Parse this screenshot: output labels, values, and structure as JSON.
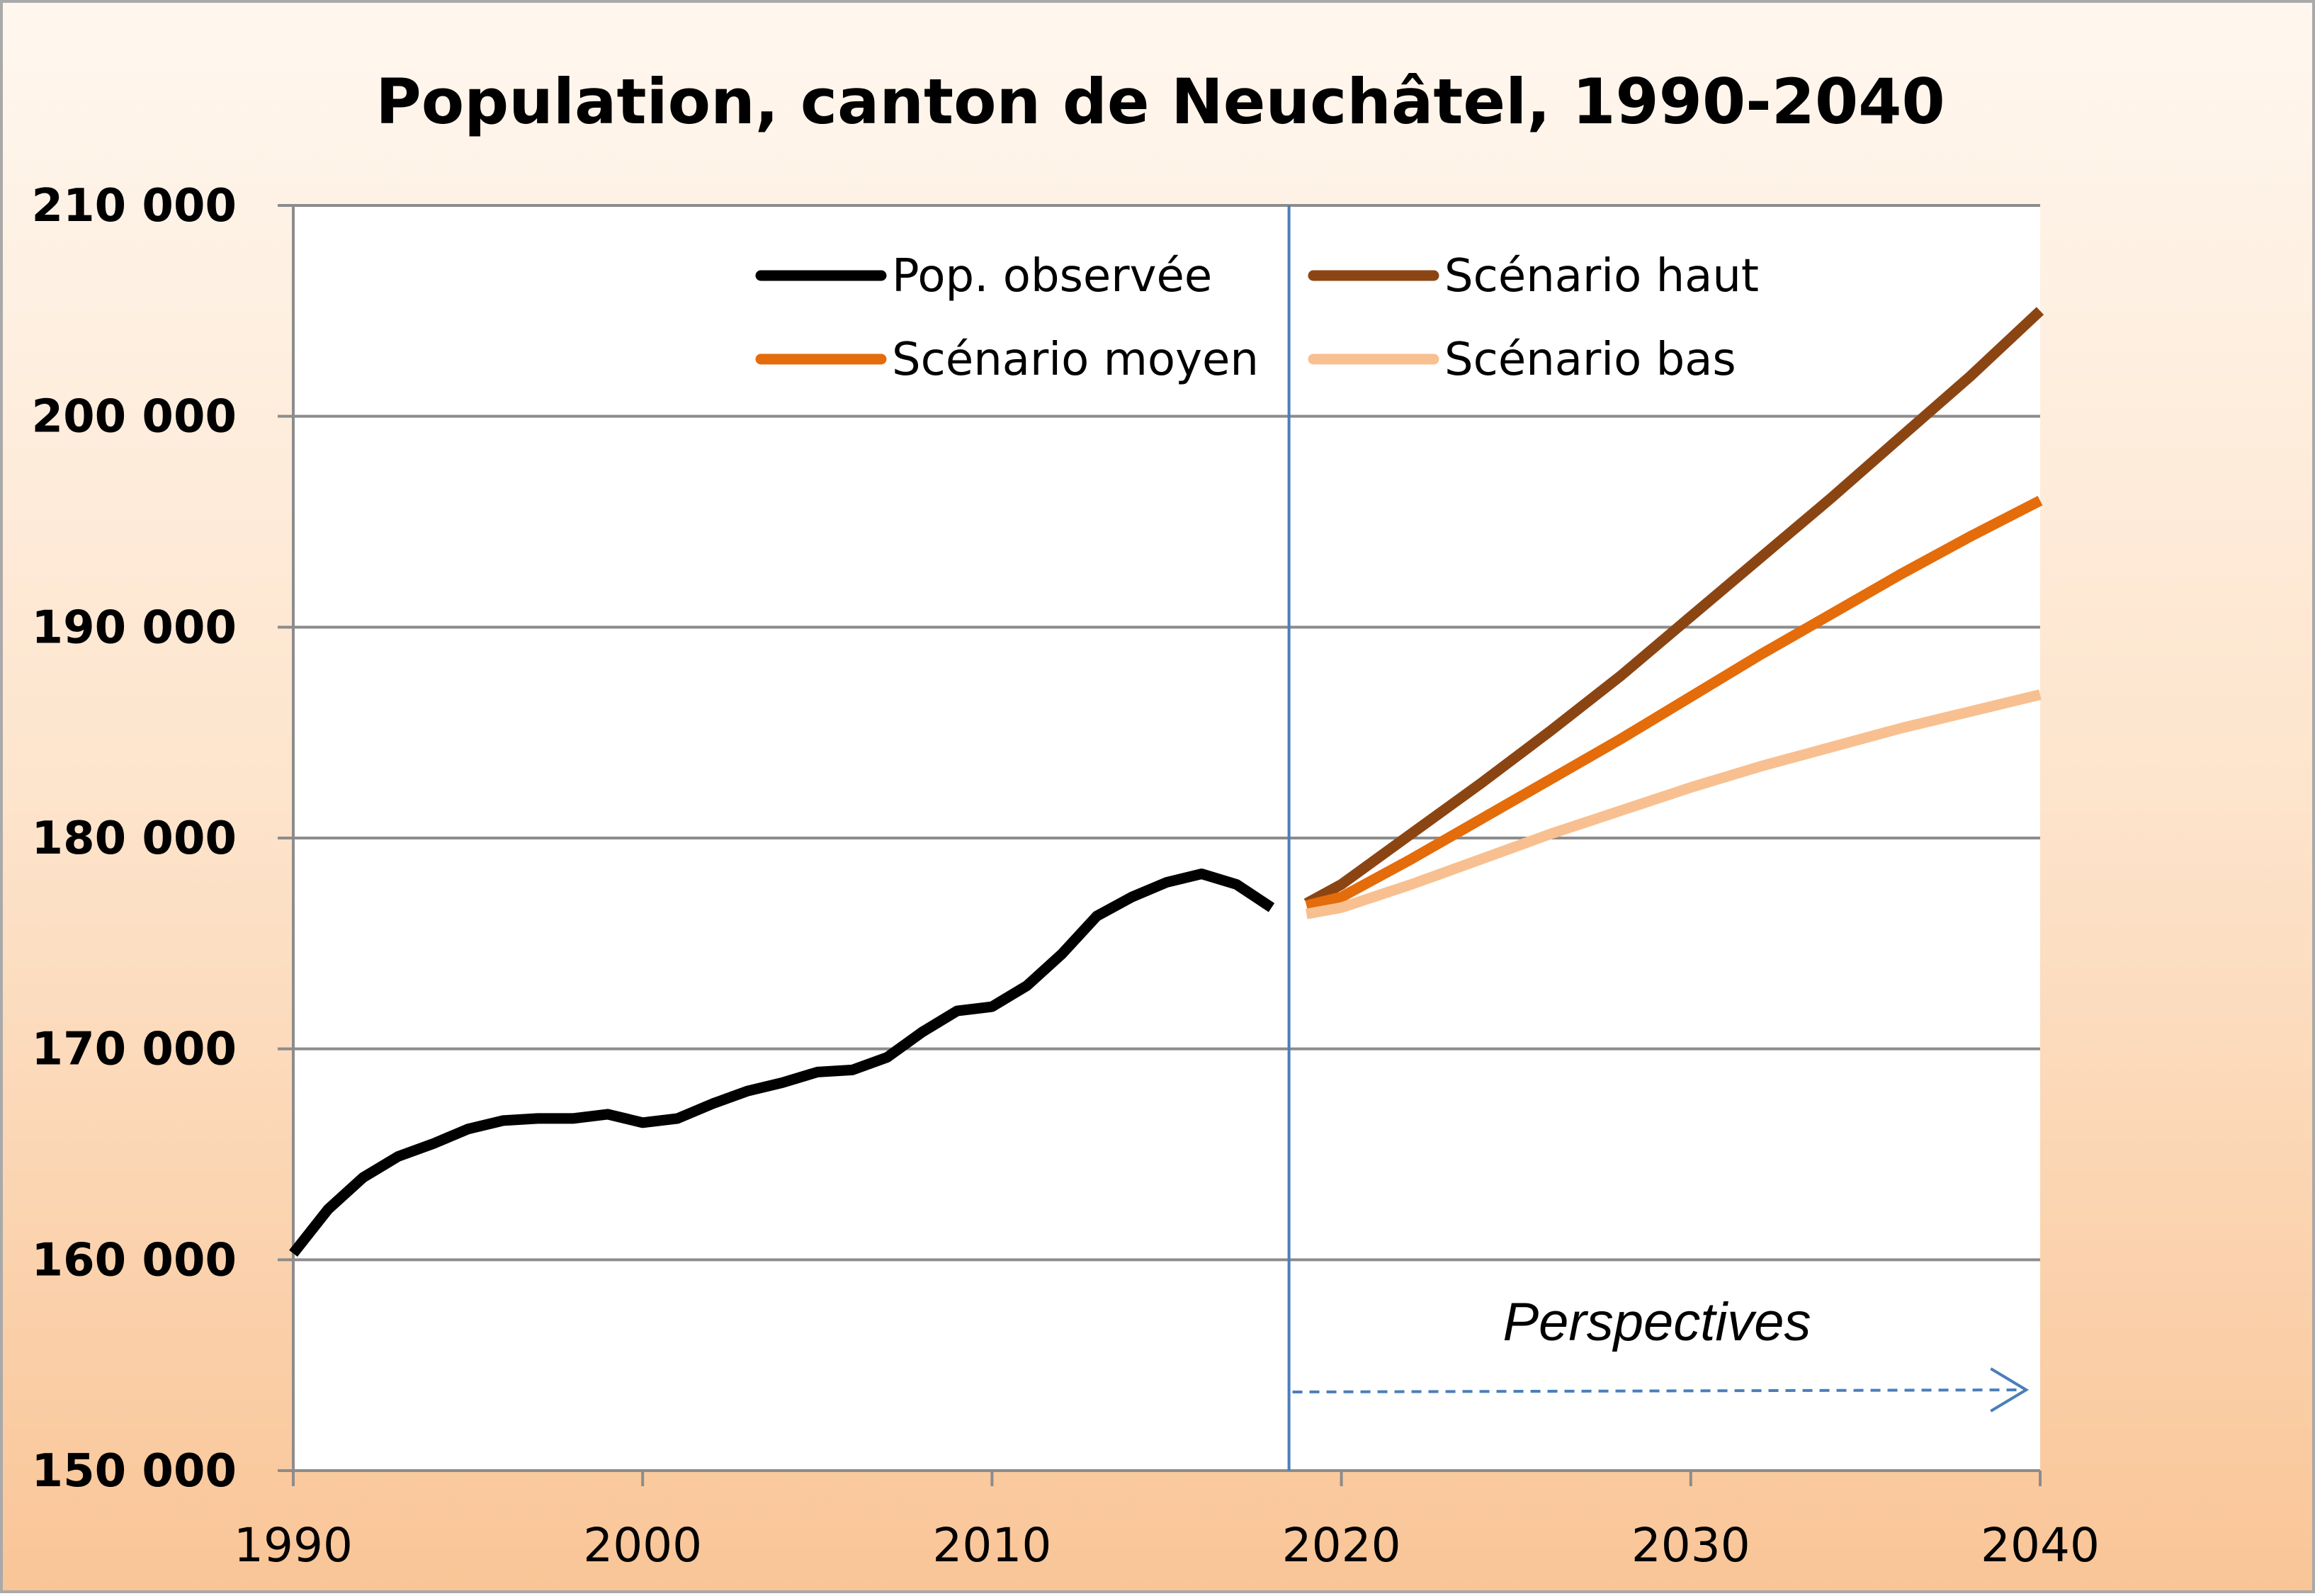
{
  "chart_data": {
    "type": "line",
    "title": "Population, canton de Neuchâtel, 1990-2040",
    "xlabel": "",
    "ylabel": "",
    "xlim": [
      1990,
      2040
    ],
    "ylim": [
      150000,
      210000
    ],
    "x_ticks": [
      1990,
      2000,
      2010,
      2020,
      2030,
      2040
    ],
    "y_ticks": [
      150000,
      160000,
      170000,
      180000,
      190000,
      200000,
      210000
    ],
    "y_tick_labels": [
      "150 000",
      "160 000",
      "170 000",
      "180 000",
      "190 000",
      "200 000",
      "210 000"
    ],
    "grid": "horizontal",
    "legend_position": "top",
    "series": [
      {
        "name": "Pop. observée",
        "color": "#000000",
        "x": [
          1990,
          1991,
          1992,
          1993,
          1994,
          1995,
          1996,
          1997,
          1998,
          1999,
          2000,
          2001,
          2002,
          2003,
          2004,
          2005,
          2006,
          2007,
          2008,
          2009,
          2010,
          2011,
          2012,
          2013,
          2014,
          2015,
          2016,
          2017,
          2018
        ],
        "y": [
          160300,
          162400,
          163900,
          164900,
          165500,
          166200,
          166600,
          166700,
          166700,
          166900,
          166500,
          166700,
          167400,
          168000,
          168400,
          168900,
          169000,
          169600,
          170800,
          171800,
          172000,
          173000,
          174500,
          176300,
          177200,
          177900,
          178300,
          177800,
          176700
        ]
      },
      {
        "name": "Scénario haut",
        "color": "#8b4513",
        "x": [
          2019,
          2020,
          2022,
          2024,
          2026,
          2028,
          2030,
          2032,
          2034,
          2036,
          2038,
          2040
        ],
        "y": [
          176900,
          177800,
          180200,
          182600,
          185100,
          187700,
          190500,
          193300,
          196100,
          199000,
          201900,
          205000
        ]
      },
      {
        "name": "Scénario moyen",
        "color": "#e46c0a",
        "x": [
          2019,
          2020,
          2022,
          2024,
          2026,
          2028,
          2030,
          2032,
          2034,
          2036,
          2038,
          2040
        ],
        "y": [
          176800,
          177200,
          179000,
          180900,
          182800,
          184700,
          186700,
          188700,
          190600,
          192500,
          194300,
          196000
        ]
      },
      {
        "name": "Scénario bas",
        "color": "#f8c090",
        "x": [
          2019,
          2020,
          2022,
          2024,
          2026,
          2028,
          2030,
          2032,
          2034,
          2036,
          2038,
          2040
        ],
        "y": [
          176400,
          176700,
          177800,
          179000,
          180200,
          181300,
          182400,
          183400,
          184300,
          185200,
          186000,
          186800
        ]
      }
    ],
    "annotations": [
      {
        "text": "Perspectives",
        "type": "arrow-right",
        "x_start": 2018.6,
        "x_end": 2039.6
      }
    ],
    "forecast_divider_x": 2018.5
  }
}
